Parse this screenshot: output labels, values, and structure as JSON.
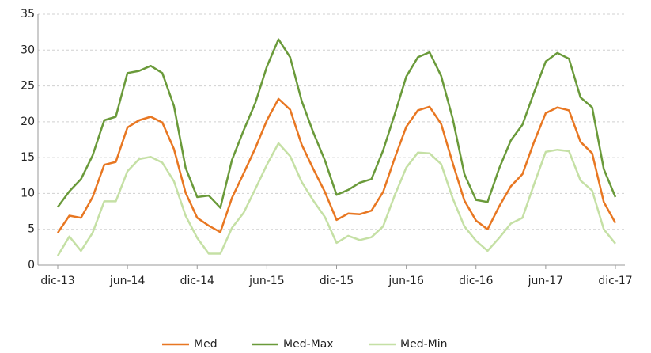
{
  "chart_data": {
    "type": "line",
    "categories": [
      "dic-13",
      null,
      null,
      null,
      null,
      null,
      "jun-14",
      null,
      null,
      null,
      null,
      null,
      "dic-14",
      null,
      null,
      null,
      null,
      null,
      "jun-15",
      null,
      null,
      null,
      null,
      null,
      "dic-15",
      null,
      null,
      null,
      null,
      null,
      "jun-16",
      null,
      null,
      null,
      null,
      null,
      "dic-16",
      null,
      null,
      null,
      null,
      null,
      "jun-17",
      null,
      null,
      null,
      null,
      null,
      "dic-17"
    ],
    "series": [
      {
        "name": "Med",
        "color": "#e87722",
        "values": [
          4.5,
          6.9,
          6.6,
          9.5,
          14.0,
          14.4,
          19.2,
          20.2,
          20.7,
          19.9,
          16.2,
          10.1,
          6.6,
          5.5,
          4.6,
          9.4,
          12.8,
          16.3,
          20.2,
          23.2,
          21.7,
          16.8,
          13.4,
          10.2,
          6.3,
          7.2,
          7.1,
          7.6,
          10.2,
          14.9,
          19.3,
          21.6,
          22.1,
          19.7,
          14.2,
          9.0,
          6.2,
          5.0,
          8.2,
          11.0,
          12.7,
          17.2,
          21.2,
          22.0,
          21.6,
          17.2,
          15.6,
          8.8,
          5.9
        ]
      },
      {
        "name": "Med-Max",
        "color": "#6a9a3a",
        "values": [
          8.1,
          10.3,
          12.0,
          15.3,
          20.2,
          20.7,
          26.8,
          27.1,
          27.8,
          26.8,
          22.2,
          13.6,
          9.5,
          9.7,
          8.0,
          14.7,
          18.8,
          22.6,
          27.7,
          31.5,
          29.0,
          22.9,
          18.5,
          14.6,
          9.8,
          10.5,
          11.5,
          12.0,
          16.0,
          21.0,
          26.3,
          29.0,
          29.7,
          26.4,
          20.4,
          12.7,
          9.1,
          8.8,
          13.5,
          17.4,
          19.6,
          24.1,
          28.4,
          29.6,
          28.8,
          23.4,
          22.0,
          13.4,
          9.5
        ]
      },
      {
        "name": "Med-Min",
        "color": "#c5e0a5",
        "values": [
          1.3,
          4.0,
          2.0,
          4.5,
          8.9,
          8.9,
          13.1,
          14.8,
          15.1,
          14.3,
          11.7,
          6.9,
          3.8,
          1.6,
          1.6,
          5.2,
          7.3,
          10.6,
          14.0,
          17.0,
          15.2,
          11.6,
          9.0,
          6.7,
          3.1,
          4.1,
          3.5,
          3.9,
          5.4,
          9.7,
          13.6,
          15.7,
          15.6,
          14.1,
          9.3,
          5.4,
          3.4,
          2.0,
          3.8,
          5.8,
          6.6,
          11.3,
          15.8,
          16.1,
          15.9,
          11.8,
          10.4,
          5.0,
          3.0
        ]
      }
    ],
    "ylim": [
      0,
      35
    ],
    "yticks": [
      0,
      5,
      10,
      15,
      20,
      25,
      30,
      35
    ],
    "grid": true,
    "legend": "bottom"
  }
}
